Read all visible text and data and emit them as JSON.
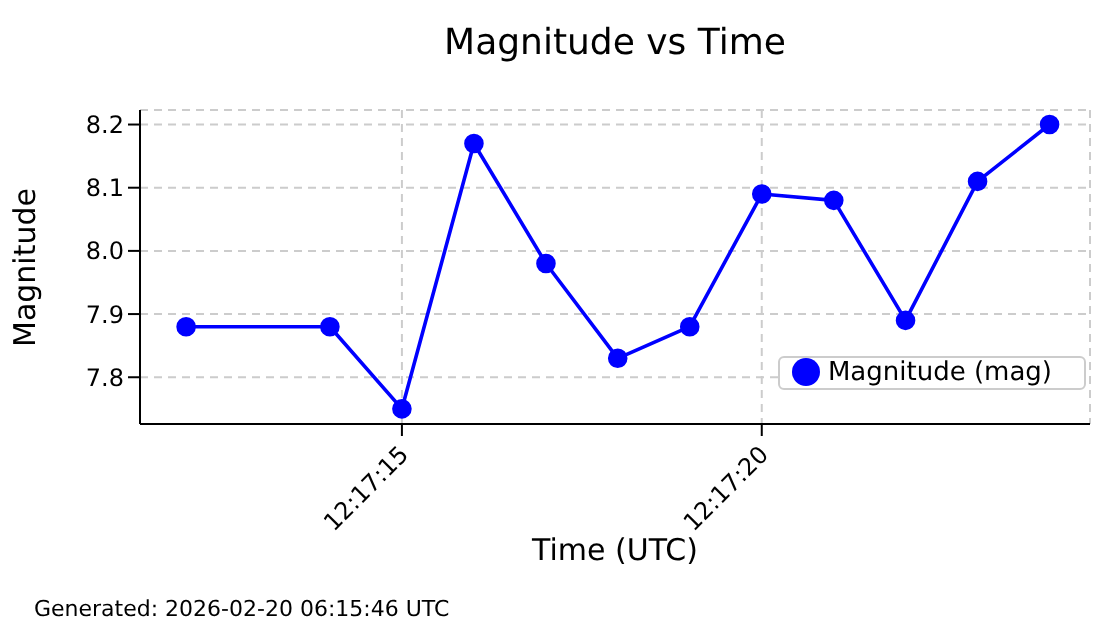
{
  "chart_data": {
    "type": "line",
    "title": "Magnitude vs Time",
    "xlabel": "Time (UTC)",
    "ylabel": "Magnitude",
    "x": [
      12.286667,
      12.287222,
      12.2875,
      12.287778,
      12.288056,
      12.288333,
      12.288611,
      12.288889,
      12.289167,
      12.289444,
      12.289722,
      12.29
    ],
    "series": [
      {
        "name": "Magnitude (mag)",
        "color": "#0000ff",
        "values": [
          7.88,
          7.88,
          7.75,
          8.17,
          7.98,
          7.83,
          7.88,
          8.09,
          8.08,
          7.89,
          8.11,
          8.2
        ]
      }
    ],
    "xlim": [
      12.286489,
      12.290156
    ],
    "xticks": [
      {
        "value": 12.2875,
        "label": "12:17:15"
      },
      {
        "value": 12.288889,
        "label": "12:17:20"
      }
    ],
    "ylim": [
      7.726,
      8.223
    ],
    "yticks": [
      7.8,
      7.9,
      {
        "value": 8,
        "label": "8.0"
      },
      8.1,
      8.2
    ],
    "grid": true,
    "legend": "bottom right",
    "marker": "circle",
    "line_style": "solid",
    "annotations": [
      "Generated: 2026-02-20 06:15:46 UTC"
    ]
  }
}
